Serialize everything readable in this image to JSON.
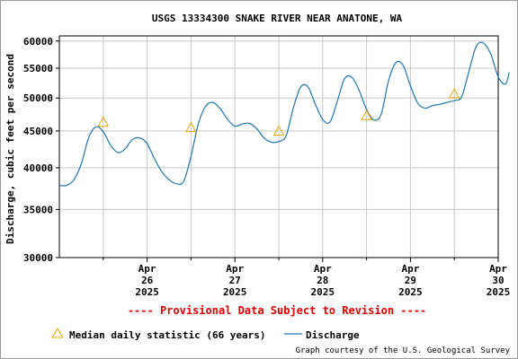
{
  "chart_data": {
    "type": "line",
    "title": "USGS 13334300 SNAKE RIVER NEAR ANATONE, WA",
    "ylabel": "Discharge, cubic feet per second",
    "y_scale": "log",
    "ylim": [
      30000,
      61000
    ],
    "xlim": [
      "2025-04-25 12:00",
      "2025-04-30 12:00"
    ],
    "y_ticks": [
      "60000",
      "55000",
      "50000",
      "45000",
      "40000",
      "35000",
      "30000"
    ],
    "x_ticks": [
      {
        "month": "Apr",
        "day": "26",
        "year": "2025",
        "x": "2025-04-26 12:00"
      },
      {
        "month": "Apr",
        "day": "27",
        "year": "2025",
        "x": "2025-04-27 12:00"
      },
      {
        "month": "Apr",
        "day": "28",
        "year": "2025",
        "x": "2025-04-28 12:00"
      },
      {
        "month": "Apr",
        "day": "29",
        "year": "2025",
        "x": "2025-04-29 12:00"
      },
      {
        "month": "Apr",
        "day": "30",
        "year": "2025",
        "x": "2025-04-30 12:00"
      }
    ],
    "grid": true,
    "series": [
      {
        "name": "Discharge",
        "color": "#1f77b4",
        "points": [
          [
            "2025-04-25 12:00",
            37800
          ],
          [
            "2025-04-25 14:00",
            37800
          ],
          [
            "2025-04-25 16:00",
            38500
          ],
          [
            "2025-04-25 18:00",
            40500
          ],
          [
            "2025-04-25 20:00",
            44000
          ],
          [
            "2025-04-25 22:00",
            45600
          ],
          [
            "2025-04-26 00:00",
            44900
          ],
          [
            "2025-04-26 02:00",
            43000
          ],
          [
            "2025-04-26 04:00",
            42000
          ],
          [
            "2025-04-26 06:00",
            42500
          ],
          [
            "2025-04-26 08:00",
            43800
          ],
          [
            "2025-04-26 10:00",
            44000
          ],
          [
            "2025-04-26 12:00",
            43200
          ],
          [
            "2025-04-26 14:00",
            41200
          ],
          [
            "2025-04-26 16:00",
            39500
          ],
          [
            "2025-04-26 18:00",
            38500
          ],
          [
            "2025-04-26 20:00",
            38000
          ],
          [
            "2025-04-26 22:00",
            38300
          ],
          [
            "2025-04-27 00:00",
            41500
          ],
          [
            "2025-04-27 02:00",
            46000
          ],
          [
            "2025-04-27 04:00",
            48700
          ],
          [
            "2025-04-27 06:00",
            49300
          ],
          [
            "2025-04-27 08:00",
            48300
          ],
          [
            "2025-04-27 10:00",
            46700
          ],
          [
            "2025-04-27 12:00",
            45700
          ],
          [
            "2025-04-27 14:00",
            46000
          ],
          [
            "2025-04-27 16:00",
            46100
          ],
          [
            "2025-04-27 18:00",
            45300
          ],
          [
            "2025-04-27 20:00",
            44000
          ],
          [
            "2025-04-27 22:00",
            43400
          ],
          [
            "2025-04-28 00:00",
            43500
          ],
          [
            "2025-04-28 02:00",
            44300
          ],
          [
            "2025-04-28 04:00",
            48500
          ],
          [
            "2025-04-28 06:00",
            51800
          ],
          [
            "2025-04-28 08:00",
            51800
          ],
          [
            "2025-04-28 10:00",
            49000
          ],
          [
            "2025-04-28 12:00",
            46700
          ],
          [
            "2025-04-28 14:00",
            46300
          ],
          [
            "2025-04-28 16:00",
            49500
          ],
          [
            "2025-04-28 18:00",
            53200
          ],
          [
            "2025-04-28 20:00",
            53400
          ],
          [
            "2025-04-28 22:00",
            51200
          ],
          [
            "2025-04-29 00:00",
            48200
          ],
          [
            "2025-04-29 02:00",
            46600
          ],
          [
            "2025-04-29 04:00",
            47500
          ],
          [
            "2025-04-29 06:00",
            52800
          ],
          [
            "2025-04-29 08:00",
            56000
          ],
          [
            "2025-04-29 10:00",
            55500
          ],
          [
            "2025-04-29 12:00",
            52000
          ],
          [
            "2025-04-29 14:00",
            49200
          ],
          [
            "2025-04-29 16:00",
            48400
          ],
          [
            "2025-04-29 18:00",
            48800
          ],
          [
            "2025-04-29 20:00",
            49000
          ],
          [
            "2025-04-29 22:00",
            49300
          ],
          [
            "2025-04-30 00:00",
            49600
          ],
          [
            "2025-04-30 02:00",
            50200
          ],
          [
            "2025-04-30 04:00",
            54500
          ],
          [
            "2025-04-30 06:00",
            59000
          ],
          [
            "2025-04-30 08:00",
            59600
          ],
          [
            "2025-04-30 10:00",
            57500
          ],
          [
            "2025-04-30 12:00",
            53500
          ],
          [
            "2025-04-30 14:00",
            52300
          ],
          [
            "2025-04-30 15:00",
            54300
          ]
        ]
      }
    ],
    "median_markers": {
      "name": "Median daily statistic (66 years)",
      "color": "#e6a800",
      "points": [
        [
          "2025-04-26 00:00",
          46200
        ],
        [
          "2025-04-27 00:00",
          45400
        ],
        [
          "2025-04-28 00:00",
          44900
        ],
        [
          "2025-04-29 00:00",
          47200
        ],
        [
          "2025-04-30 00:00",
          50600
        ]
      ]
    },
    "provisional_note": "---- Provisional Data Subject to Revision ----",
    "credit": "Graph courtesy of the U.S. Geological Survey"
  }
}
